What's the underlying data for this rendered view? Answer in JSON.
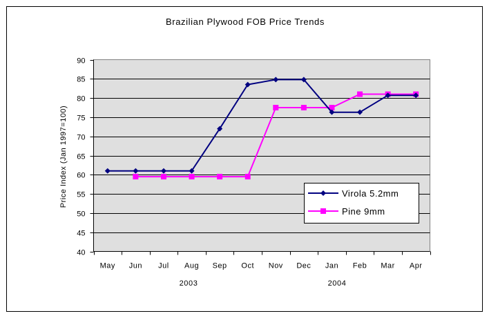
{
  "chart_data": {
    "type": "line",
    "title": "Brazilian Plywood FOB Price Trends",
    "xlabel": "",
    "ylabel": "Price Index (Jan 1997=100)",
    "categories": [
      "May",
      "Jun",
      "Jul",
      "Aug",
      "Sep",
      "Oct",
      "Nov",
      "Dec",
      "Jan",
      "Feb",
      "Mar",
      "Apr"
    ],
    "year_labels": [
      "2003",
      "2004"
    ],
    "ylim": [
      40,
      90
    ],
    "yticks": [
      "40",
      "45",
      "50",
      "55",
      "60",
      "65",
      "70",
      "75",
      "80",
      "85",
      "90"
    ],
    "grid": "horizontal",
    "legend_position": "lower-right inside plot",
    "series": [
      {
        "name": "Virola 5.2mm",
        "color": "#000080",
        "marker": "diamond",
        "values": [
          61,
          61,
          61,
          61,
          72,
          83.5,
          84.8,
          84.8,
          76.3,
          76.3,
          80.7,
          80.7
        ]
      },
      {
        "name": "Pine 9mm",
        "color": "#ff00ff",
        "marker": "square",
        "values": [
          null,
          59.5,
          59.5,
          59.5,
          59.5,
          59.5,
          77.5,
          77.5,
          77.5,
          81,
          81,
          81
        ]
      }
    ],
    "colors": {
      "plot_background": "#dfdfdf",
      "gridline": "#000000"
    }
  }
}
